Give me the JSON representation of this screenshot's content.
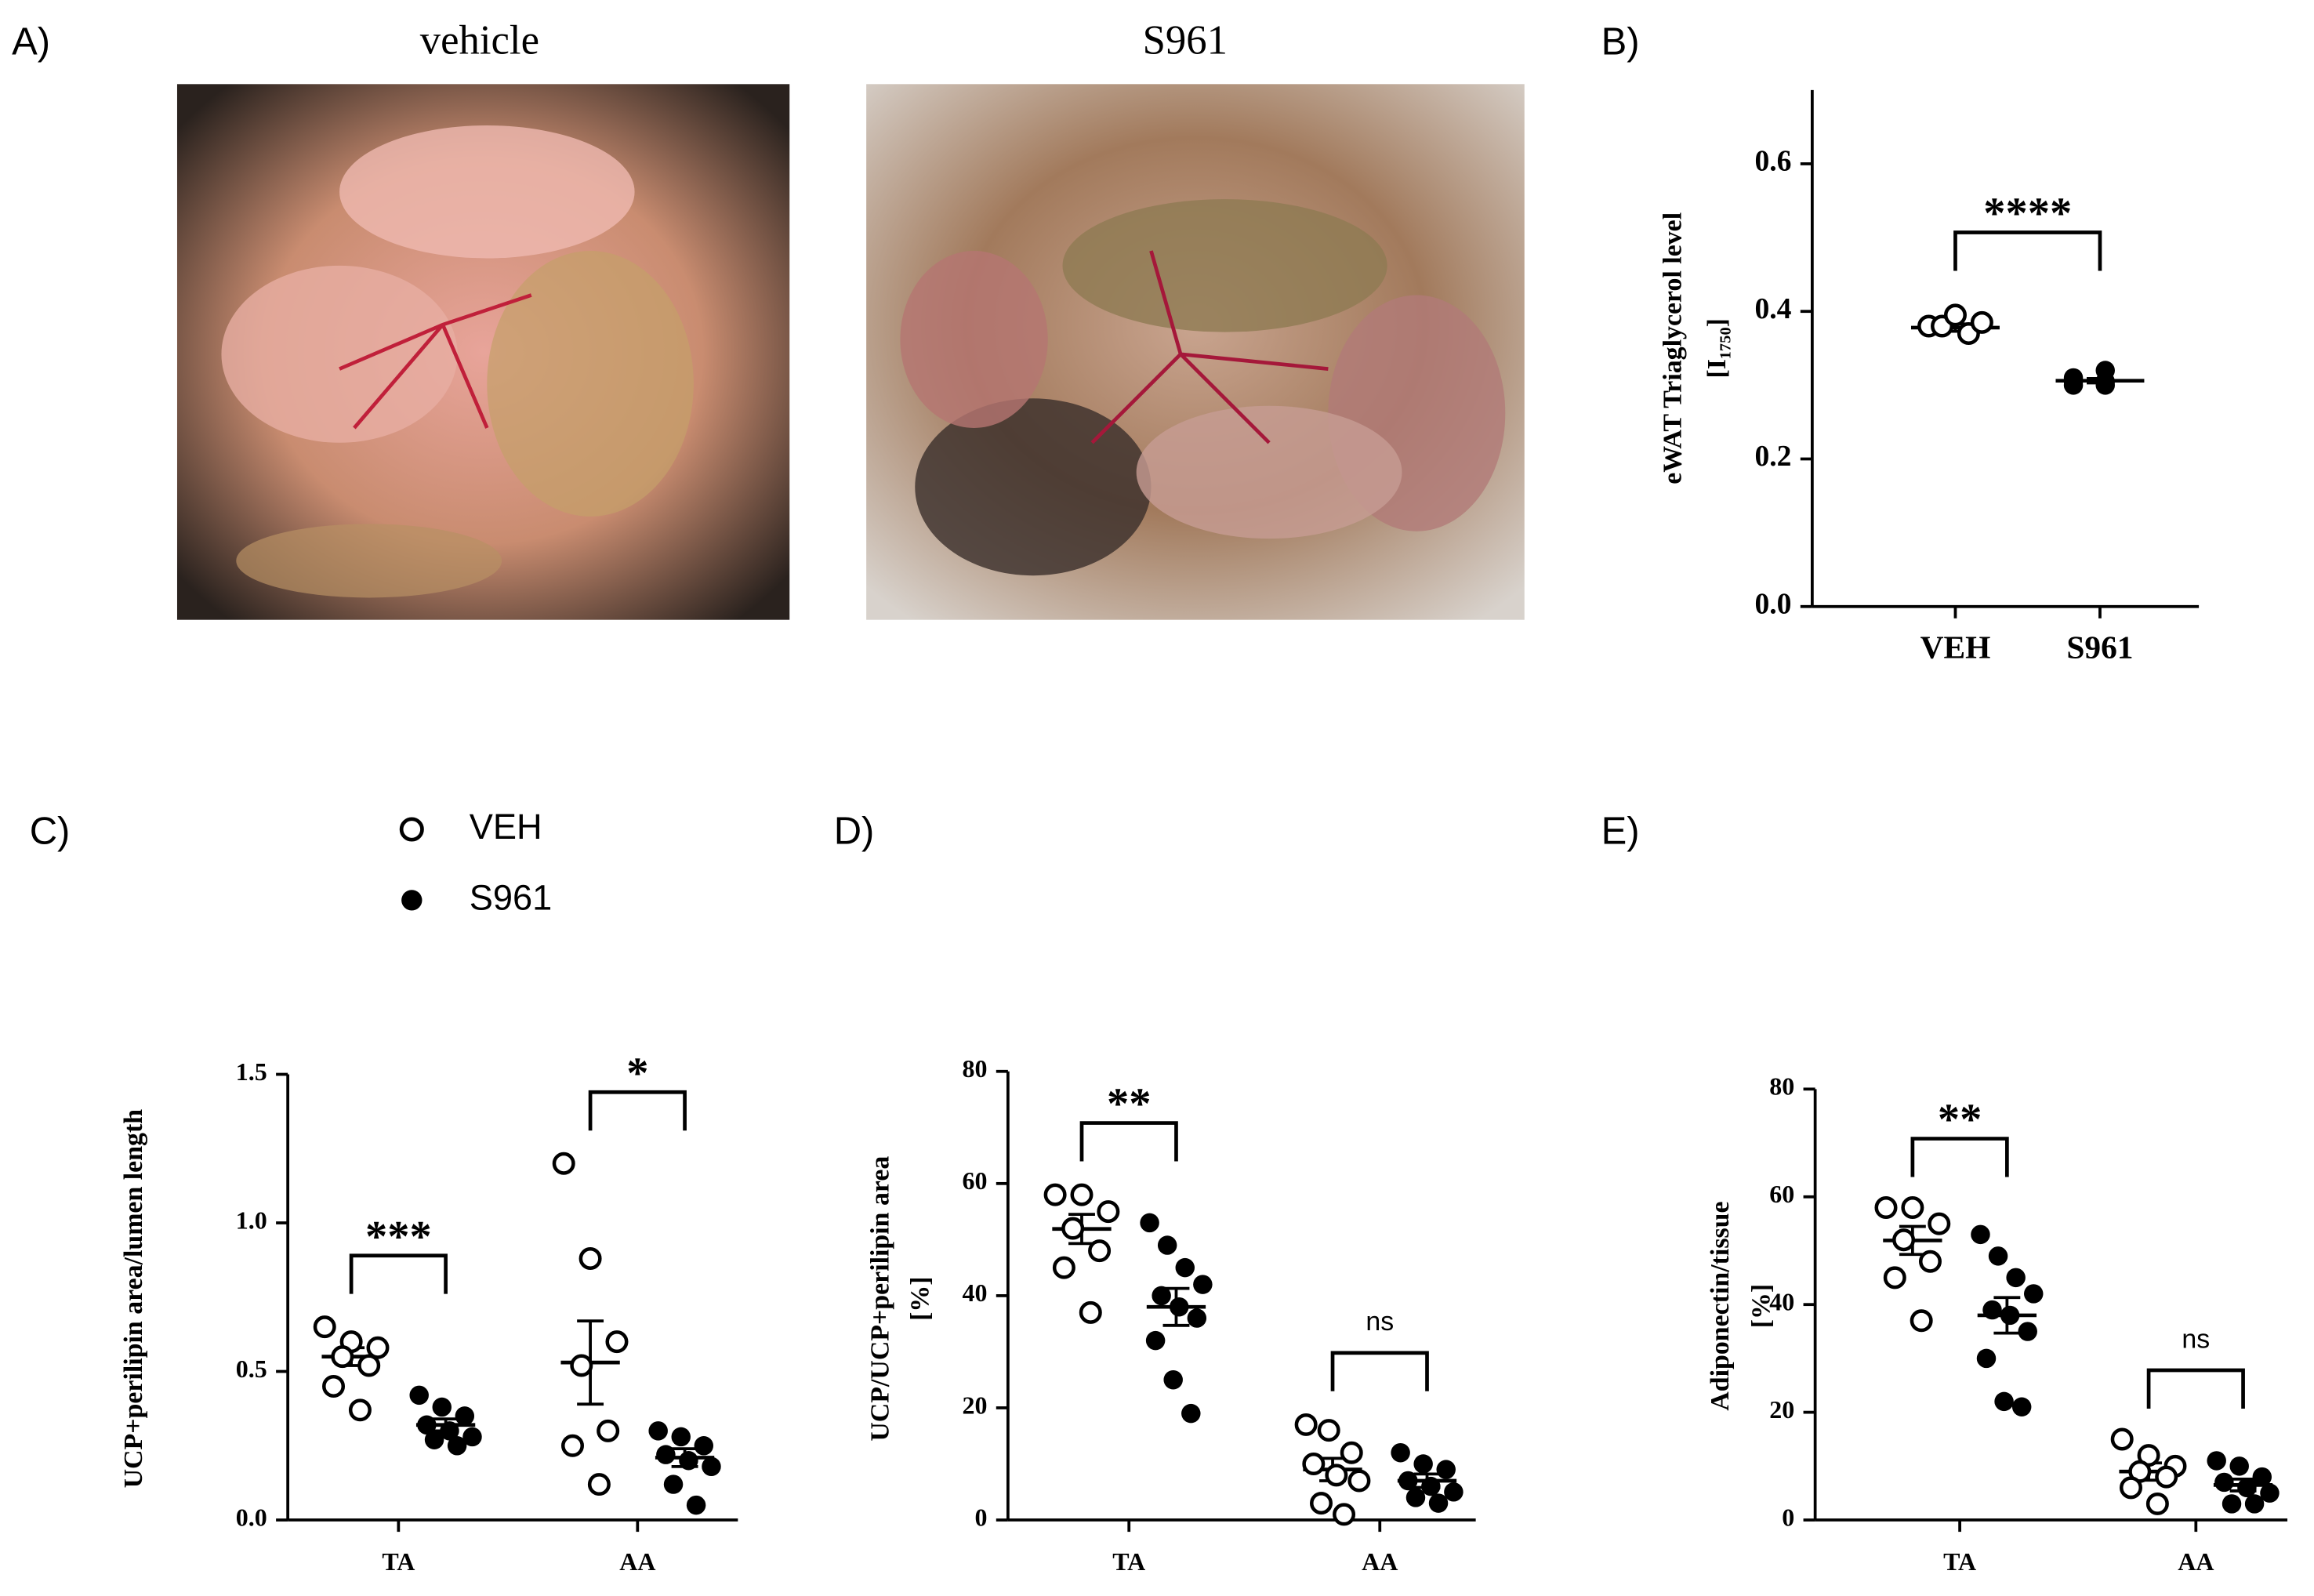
{
  "figure": {
    "panel": "A)",
    "photo_titles": [
      "vehicle",
      "S961"
    ]
  },
  "chart_data": [
    {
      "type": "dot",
      "panel": "B)",
      "ylabel": [
        "eWAT Triaglycerol level",
        "[I₁₇₅₀]"
      ],
      "categories": [
        "VEH",
        "S961"
      ],
      "values": [
        [
          0.38,
          0.37,
          0.38,
          0.385,
          0.395
        ],
        [
          0.3,
          0.305,
          0.31,
          0.32,
          0.305,
          0.3
        ]
      ],
      "mean": [
        0.378,
        0.306
      ],
      "sem": [
        0.005,
        0.003
      ],
      "markers": [
        "open",
        "filled"
      ],
      "ylim": [
        0,
        0.7
      ],
      "yticks": [
        {
          "value": 0,
          "label": "0.0"
        },
        0.2,
        0.4,
        0.6
      ],
      "annotations": [
        {
          "text": "****"
        }
      ]
    },
    {
      "type": "dot",
      "panel": "C)",
      "ylabel": [
        "UCP+perilipin area/lumen length"
      ],
      "categories": [
        "TA",
        "AA"
      ],
      "series": [
        {
          "name": "VEH",
          "marker": "open",
          "values": [
            [
              0.65,
              0.6,
              0.58,
              0.55,
              0.52,
              0.45,
              0.37
            ],
            [
              1.2,
              0.88,
              0.6,
              0.52,
              0.3,
              0.25,
              0.12
            ]
          ],
          "mean": [
            0.55,
            0.53
          ],
          "sem": [
            0.03,
            0.14
          ]
        },
        {
          "name": "S961",
          "marker": "filled",
          "values": [
            [
              0.42,
              0.38,
              0.35,
              0.32,
              0.3,
              0.28,
              0.27,
              0.25
            ],
            [
              0.3,
              0.28,
              0.25,
              0.22,
              0.2,
              0.18,
              0.12,
              0.05
            ]
          ],
          "mean": [
            0.32,
            0.21
          ],
          "sem": [
            0.02,
            0.03
          ]
        }
      ],
      "ylim": [
        0,
        1.5
      ],
      "yticks": [
        {
          "value": 0,
          "label": "0.0"
        },
        0.5,
        {
          "value": 1,
          "label": "1.0"
        },
        1.5
      ],
      "annotations": [
        {
          "text": "***",
          "category": 0
        },
        {
          "text": "*",
          "category": 1
        }
      ]
    },
    {
      "type": "dot",
      "panel": "D)",
      "ylabel": [
        "UCP/UCP+perilipin area",
        "[%]"
      ],
      "categories": [
        "TA",
        "AA"
      ],
      "series": [
        {
          "marker": "open",
          "values": [
            [
              58,
              58,
              55,
              52,
              48,
              45,
              37
            ],
            [
              17,
              16,
              12,
              10,
              8,
              7,
              3,
              1
            ]
          ],
          "mean": [
            51.9,
            9
          ],
          "sem": [
            2.6,
            2
          ]
        },
        {
          "marker": "filled",
          "values": [
            [
              53,
              49,
              45,
              42,
              40,
              38,
              36,
              32,
              25,
              19
            ],
            [
              12,
              10,
              9,
              7,
              6,
              5,
              4,
              3
            ]
          ],
          "mean": [
            38,
            7
          ],
          "sem": [
            3.3,
            1.2
          ]
        }
      ],
      "ylim": [
        0,
        80
      ],
      "yticks": [
        0,
        20,
        40,
        60,
        80
      ],
      "annotations": [
        {
          "text": "**",
          "category": 0
        },
        {
          "text": "ns",
          "category": 1
        }
      ]
    },
    {
      "type": "dot",
      "panel": "E)",
      "ylabel": [
        "Adiponectin/tissue",
        "[%]"
      ],
      "categories": [
        "TA",
        "AA"
      ],
      "series": [
        {
          "marker": "open",
          "values": [
            [
              58,
              58,
              55,
              52,
              48,
              45,
              37
            ],
            [
              15,
              12,
              10,
              9,
              8,
              6,
              3
            ]
          ],
          "mean": [
            51.9,
            9
          ],
          "sem": [
            2.6,
            1.6
          ]
        },
        {
          "marker": "filled",
          "values": [
            [
              53,
              49,
              45,
              42,
              39,
              38,
              35,
              30,
              22,
              21
            ],
            [
              11,
              10,
              8,
              7,
              6,
              5,
              3,
              3
            ]
          ],
          "mean": [
            38,
            6.5
          ],
          "sem": [
            3.3,
            1.1
          ]
        }
      ],
      "ylim": [
        0,
        80
      ],
      "yticks": [
        0,
        20,
        40,
        60,
        80
      ],
      "annotations": [
        {
          "text": "**",
          "category": 0
        },
        {
          "text": "ns",
          "category": 1
        }
      ]
    }
  ]
}
